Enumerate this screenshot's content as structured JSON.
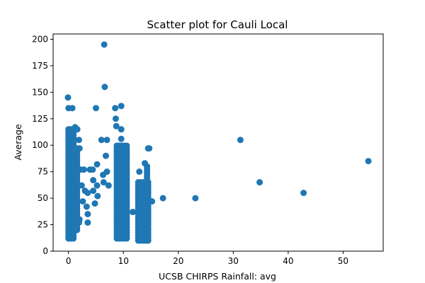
{
  "chart_data": {
    "type": "scatter",
    "title": "Scatter plot for Cauli Local",
    "xlabel": "UCSB CHIRPS Rainfall: avg",
    "ylabel": "Average",
    "xlim": [
      -2.8,
      57.3
    ],
    "ylim": [
      0,
      205
    ],
    "xticks": [
      0,
      10,
      20,
      30,
      40,
      50
    ],
    "yticks": [
      0,
      25,
      50,
      75,
      100,
      125,
      150,
      175,
      200
    ],
    "grid": false,
    "legend": "none",
    "color": "#1f77b4",
    "points": [
      [
        6.5,
        195
      ],
      [
        6.6,
        155
      ],
      [
        -0.1,
        145
      ],
      [
        0.0,
        135
      ],
      [
        0.7,
        135
      ],
      [
        5.0,
        135
      ],
      [
        8.5,
        135
      ],
      [
        9.6,
        137
      ],
      [
        8.6,
        125
      ],
      [
        8.7,
        118
      ],
      [
        0.0,
        115
      ],
      [
        0.4,
        115
      ],
      [
        1.2,
        117
      ],
      [
        1.6,
        115
      ],
      [
        9.6,
        115
      ],
      [
        1.9,
        105
      ],
      [
        6.0,
        105
      ],
      [
        7.0,
        105
      ],
      [
        9.6,
        106
      ],
      [
        31.3,
        105
      ],
      [
        14.5,
        97
      ],
      [
        14.7,
        97
      ],
      [
        0.8,
        97
      ],
      [
        1.5,
        97
      ],
      [
        2.0,
        97
      ],
      [
        1.2,
        90
      ],
      [
        1.0,
        85
      ],
      [
        13.9,
        83
      ],
      [
        0.1,
        80
      ],
      [
        0.6,
        80
      ],
      [
        2.2,
        77
      ],
      [
        2.8,
        77
      ],
      [
        3.9,
        77
      ],
      [
        4.4,
        77
      ],
      [
        5.2,
        82
      ],
      [
        7.0,
        75
      ],
      [
        12.9,
        75
      ],
      [
        54.6,
        85
      ],
      [
        1.3,
        70
      ],
      [
        2.4,
        62
      ],
      [
        4.5,
        67
      ],
      [
        5.2,
        62
      ],
      [
        6.4,
        65
      ],
      [
        34.8,
        65
      ],
      [
        3.0,
        57
      ],
      [
        3.5,
        55
      ],
      [
        4.5,
        57
      ],
      [
        5.3,
        52
      ],
      [
        11.7,
        37
      ],
      [
        15.2,
        47
      ],
      [
        17.2,
        50
      ],
      [
        23.1,
        50
      ],
      [
        42.8,
        55
      ],
      [
        2.6,
        47
      ],
      [
        4.8,
        45
      ],
      [
        3.3,
        42
      ],
      [
        3.5,
        35
      ],
      [
        3.5,
        27
      ],
      [
        2.0,
        30
      ],
      [
        1.5,
        32
      ],
      [
        1.9,
        27
      ],
      [
        6.3,
        72
      ],
      [
        6.8,
        90
      ],
      [
        7.3,
        62
      ],
      [
        0.3,
        12
      ]
    ],
    "dense_columns": [
      {
        "x": 0.0,
        "width": 0.9,
        "y_min": 12,
        "y_max": 115
      },
      {
        "x": 1.1,
        "width": 0.5,
        "y_min": 20,
        "y_max": 97
      },
      {
        "x": 8.8,
        "width": 1.8,
        "y_min": 12,
        "y_max": 100
      },
      {
        "x": 12.7,
        "width": 1.9,
        "y_min": 10,
        "y_max": 65
      },
      {
        "x": 14.3,
        "width": 0.4,
        "y_min": 15,
        "y_max": 82
      }
    ]
  }
}
